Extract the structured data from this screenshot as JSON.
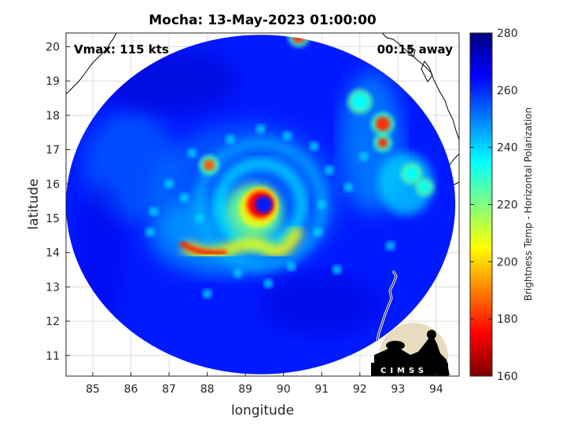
{
  "chart_data": {
    "type": "heatmap",
    "title": "Mocha: 13-May-2023 01:00:00",
    "xlabel": "longitude",
    "ylabel": "latitude",
    "xlim": [
      84.3,
      94.6
    ],
    "ylim": [
      10.4,
      20.4
    ],
    "xticks": [
      85,
      86,
      87,
      88,
      89,
      90,
      91,
      92,
      93,
      94
    ],
    "yticks": [
      11,
      12,
      13,
      14,
      15,
      16,
      17,
      18,
      19,
      20
    ],
    "grid": true,
    "annotations": {
      "vmax": "Vmax: 115 kts",
      "away": "00:15 away"
    },
    "colorbar": {
      "label": "Brightness Temp - Horizontal Polarization",
      "range": [
        160,
        280
      ],
      "ticks": [
        160,
        180,
        200,
        220,
        240,
        260,
        280
      ],
      "colormap": "jet"
    },
    "swath": {
      "center_lon": 89.4,
      "center_lat": 15.4,
      "radius_deg": 5.1
    },
    "storm_center": {
      "lon": 89.4,
      "lat": 15.4
    },
    "features": [
      {
        "name": "background",
        "value": 262
      },
      {
        "name": "eyewall",
        "value": 175
      },
      {
        "name": "eye",
        "value": 262
      },
      {
        "name": "spiral-band-south",
        "value": 178
      },
      {
        "name": "cell-88",
        "value": 185
      },
      {
        "name": "cell-92.6",
        "value": 180
      },
      {
        "name": "outer-band-east",
        "value": 235
      }
    ]
  },
  "logo": {
    "text": "CIMSS"
  }
}
